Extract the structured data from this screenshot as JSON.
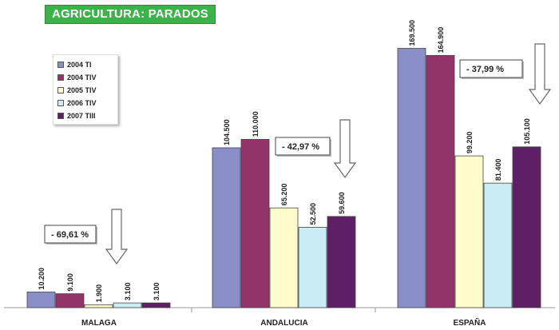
{
  "chart_data": {
    "type": "bar",
    "title": "AGRICULTURA: PARADOS",
    "categories": [
      "MALAGA",
      "ANDALUCIA",
      "ESPAÑA"
    ],
    "ylim": [
      0,
      175000
    ],
    "grid": false,
    "legend_position": "top-left",
    "series": [
      {
        "name": "2004 TI",
        "color": "#8a8fc9",
        "values": [
          10200,
          104500,
          169500
        ],
        "labels": [
          "10.200",
          "104.500",
          "169.500"
        ]
      },
      {
        "name": "2004 TIV",
        "color": "#92346a",
        "values": [
          9100,
          110000,
          164900
        ],
        "labels": [
          "9.100",
          "110.000",
          "164.900"
        ]
      },
      {
        "name": "2005 TIV",
        "color": "#fffccc",
        "values": [
          1900,
          65200,
          99200
        ],
        "labels": [
          "1.900",
          "65.200",
          "99.200"
        ]
      },
      {
        "name": "2006 TIV",
        "color": "#c9ecf5",
        "values": [
          3100,
          52500,
          81400
        ],
        "labels": [
          "3.100",
          "52.500",
          "81.400"
        ]
      },
      {
        "name": "2007 TIII",
        "color": "#5f1f66",
        "values": [
          3100,
          59600,
          105100
        ],
        "labels": [
          "3.100",
          "59.600",
          "105.100"
        ]
      }
    ],
    "annotations": [
      {
        "category": "MALAGA",
        "text": "- 69,61 %"
      },
      {
        "category": "ANDALUCIA",
        "text": "- 42,97 %"
      },
      {
        "category": "ESPAÑA",
        "text": "- 37,99 %"
      }
    ]
  }
}
